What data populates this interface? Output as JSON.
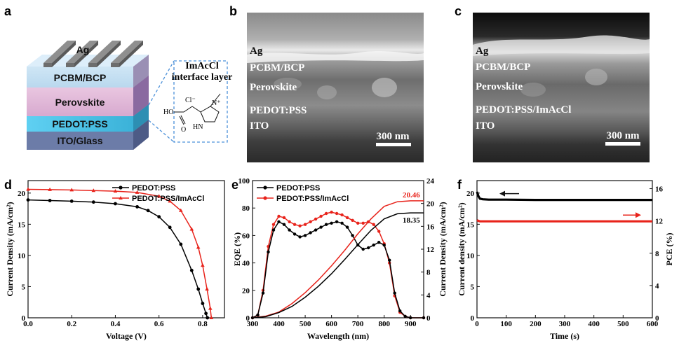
{
  "panel_letters": [
    "a",
    "b",
    "c",
    "d",
    "e",
    "f"
  ],
  "device": {
    "layers": [
      "Ag",
      "PCBM/BCP",
      "Perovskite",
      "PEDOT:PSS",
      "ITO/Glass"
    ],
    "callout_title": [
      "ImAcCl",
      "interface layer"
    ],
    "molecule": {
      "ho": "HO",
      "o": "O",
      "cl": "Cl⁻",
      "nh": "HN",
      "n": "N⁺"
    }
  },
  "sem_b": {
    "labels": [
      "Ag",
      "PCBM/BCP",
      "Perovskite",
      "PEDOT:PSS",
      "ITO"
    ],
    "scale": "300 nm"
  },
  "sem_c": {
    "labels": [
      "Ag",
      "PCBM/BCP",
      "Perovskite",
      "PEDOT:PSS/ImAcCl",
      "ITO"
    ],
    "scale": "300 nm"
  },
  "chart_data": [
    {
      "panel": "d",
      "type": "line",
      "xlabel": "Voltage (V)",
      "ylabel": "Current Density (mA/cm²)",
      "xlim": [
        0,
        0.9
      ],
      "ylim": [
        0,
        22
      ],
      "xticks": [
        "0.0",
        "0.2",
        "0.4",
        "0.6",
        "0.8"
      ],
      "yticks": [
        "0",
        "5",
        "10",
        "15",
        "20"
      ],
      "legend_position": "top-right",
      "colors": {
        "PEDOT:PSS": "#000000",
        "PEDOT:PSS/ImAcCl": "#e8231b"
      },
      "series": [
        {
          "name": "PEDOT:PSS",
          "x": [
            0,
            0.1,
            0.2,
            0.3,
            0.4,
            0.5,
            0.55,
            0.6,
            0.65,
            0.7,
            0.75,
            0.78,
            0.8,
            0.815,
            0.822
          ],
          "y": [
            18.9,
            18.8,
            18.7,
            18.55,
            18.3,
            17.8,
            17.2,
            16.2,
            14.5,
            11.8,
            7.6,
            4.6,
            2.3,
            0.7,
            0
          ]
        },
        {
          "name": "PEDOT:PSS/ImAcCl",
          "x": [
            0,
            0.1,
            0.2,
            0.3,
            0.4,
            0.5,
            0.6,
            0.65,
            0.7,
            0.75,
            0.78,
            0.8,
            0.82,
            0.835,
            0.84
          ],
          "y": [
            20.6,
            20.55,
            20.5,
            20.4,
            20.3,
            20.1,
            19.5,
            18.7,
            17.2,
            14.2,
            11.3,
            8.4,
            4.6,
            1.5,
            0
          ]
        }
      ]
    },
    {
      "panel": "e",
      "type": "line",
      "xlabel": "Wavelength (nm)",
      "ylabel": "EQE (%)",
      "y2label": "Current Density (mA/cm²)",
      "xlim": [
        300,
        950
      ],
      "ylim": [
        0,
        100
      ],
      "y2lim": [
        0,
        24
      ],
      "xticks": [
        "300",
        "400",
        "500",
        "600",
        "700",
        "800",
        "900"
      ],
      "yticks": [
        "0",
        "20",
        "40",
        "60",
        "80",
        "100"
      ],
      "y2ticks": [
        "0",
        "4",
        "8",
        "12",
        "16",
        "20",
        "24"
      ],
      "legend_position": "top-left",
      "annotations": [
        "20.46",
        "18.35"
      ],
      "colors": {
        "PEDOT:PSS": "#000000",
        "PEDOT:PSS/ImAcCl": "#e8231b"
      },
      "series": [
        {
          "name": "PEDOT:PSS",
          "axis": "EQE",
          "x": [
            300,
            320,
            340,
            360,
            380,
            400,
            420,
            440,
            460,
            480,
            500,
            520,
            540,
            560,
            580,
            600,
            620,
            640,
            660,
            680,
            700,
            720,
            740,
            760,
            780,
            800,
            820,
            840,
            860,
            880,
            900,
            950
          ],
          "y": [
            0,
            2,
            18,
            48,
            64,
            70,
            68,
            64,
            61,
            59,
            60,
            62,
            64,
            66,
            68,
            69,
            70,
            69,
            66,
            60,
            53,
            50,
            51,
            53,
            55,
            53,
            42,
            18,
            5,
            1,
            0,
            0
          ]
        },
        {
          "name": "PEDOT:PSS/ImAcCl",
          "axis": "EQE",
          "x": [
            300,
            320,
            340,
            360,
            380,
            400,
            420,
            440,
            460,
            480,
            500,
            520,
            540,
            560,
            580,
            600,
            620,
            640,
            660,
            680,
            700,
            720,
            740,
            760,
            780,
            800,
            820,
            840,
            860,
            880,
            900,
            950
          ],
          "y": [
            0,
            2,
            20,
            52,
            68,
            74,
            73,
            70,
            68,
            67,
            68,
            70,
            72,
            74,
            76,
            77,
            76,
            75,
            73,
            71,
            69,
            69,
            70,
            68,
            63,
            54,
            40,
            16,
            4,
            1,
            0,
            0
          ]
        },
        {
          "name": "PEDOT:PSS",
          "axis": "current",
          "x": [
            300,
            350,
            400,
            450,
            500,
            550,
            600,
            650,
            700,
            750,
            800,
            850,
            900,
            950
          ],
          "y": [
            0,
            0.2,
            0.9,
            2.0,
            3.6,
            5.5,
            7.7,
            10.2,
            12.8,
            15.3,
            17.3,
            18.2,
            18.35,
            18.35
          ]
        },
        {
          "name": "PEDOT:PSS/ImAcCl",
          "axis": "current",
          "x": [
            300,
            350,
            400,
            450,
            500,
            550,
            600,
            650,
            700,
            750,
            800,
            850,
            900,
            950
          ],
          "y": [
            0,
            0.3,
            1.0,
            2.5,
            4.4,
            6.6,
            9.1,
            11.8,
            14.7,
            17.3,
            19.5,
            20.3,
            20.46,
            20.46
          ]
        }
      ]
    },
    {
      "panel": "f",
      "type": "line",
      "xlabel": "Time (s)",
      "ylabel": "Current density (mA/cm²)",
      "y2label": "PCE (%)",
      "xlim": [
        0,
        600
      ],
      "ylim": [
        0,
        22
      ],
      "y2lim": [
        0,
        17
      ],
      "xticks": [
        "0",
        "100",
        "200",
        "300",
        "400",
        "500",
        "600"
      ],
      "yticks": [
        "0",
        "5",
        "10",
        "15",
        "20"
      ],
      "y2ticks": [
        "0",
        "4",
        "8",
        "12",
        "16"
      ],
      "colors": {
        "current": "#000000",
        "pce": "#e8231b"
      },
      "series": [
        {
          "axis": "current",
          "x": [
            0,
            5,
            10,
            20,
            40,
            100,
            200,
            300,
            400,
            500,
            600
          ],
          "y": [
            20.2,
            19.5,
            19.1,
            19.0,
            18.95,
            18.95,
            18.9,
            18.9,
            18.9,
            18.9,
            18.9
          ]
        },
        {
          "axis": "pce",
          "x": [
            0,
            5,
            10,
            50,
            100,
            200,
            300,
            400,
            500,
            600
          ],
          "y": [
            12.1,
            12.0,
            11.95,
            11.95,
            11.95,
            11.95,
            11.95,
            11.95,
            11.95,
            11.95
          ]
        }
      ]
    }
  ]
}
